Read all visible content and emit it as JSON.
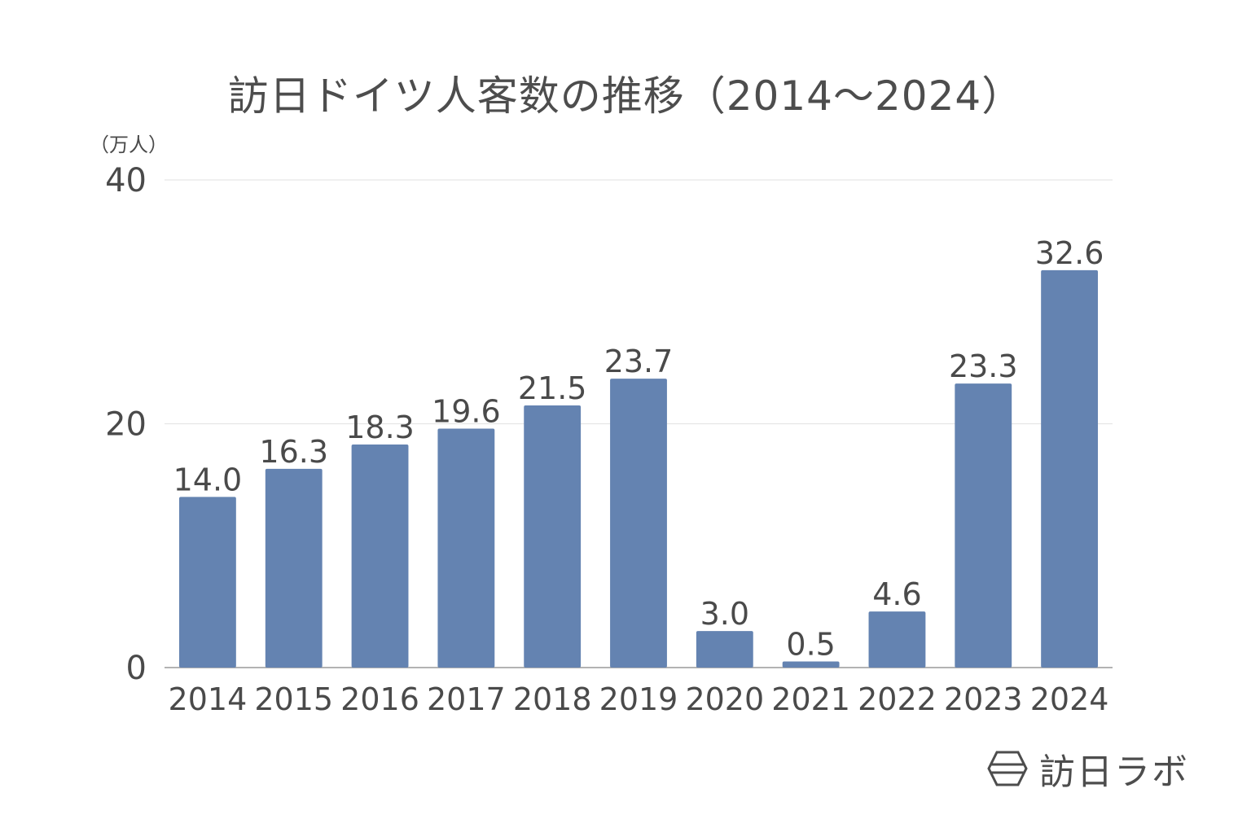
{
  "chart_data": {
    "type": "bar",
    "title": "訪日ドイツ人客数の推移（2014〜2024）",
    "ylabel": "（万人）",
    "xlabel": "",
    "ylim": [
      0,
      40
    ],
    "yticks": [
      "0",
      "20",
      "40"
    ],
    "categories": [
      "2014",
      "2015",
      "2016",
      "2017",
      "2018",
      "2019",
      "2020",
      "2021",
      "2022",
      "2023",
      "2024"
    ],
    "values": [
      14.0,
      16.3,
      18.3,
      19.6,
      21.5,
      23.7,
      3.0,
      0.5,
      4.6,
      23.3,
      32.6
    ],
    "value_labels": [
      "14.0",
      "16.3",
      "18.3",
      "19.6",
      "21.5",
      "23.7",
      "3.0",
      "0.5",
      "4.6",
      "23.3",
      "32.6"
    ],
    "grid": true,
    "bar_color": "#6483b1",
    "grid_color": "#e6e6e6",
    "text_color": "#4a4a4a"
  },
  "brand": {
    "name": "訪日ラボ",
    "icon": "hexagon-logo-icon"
  }
}
